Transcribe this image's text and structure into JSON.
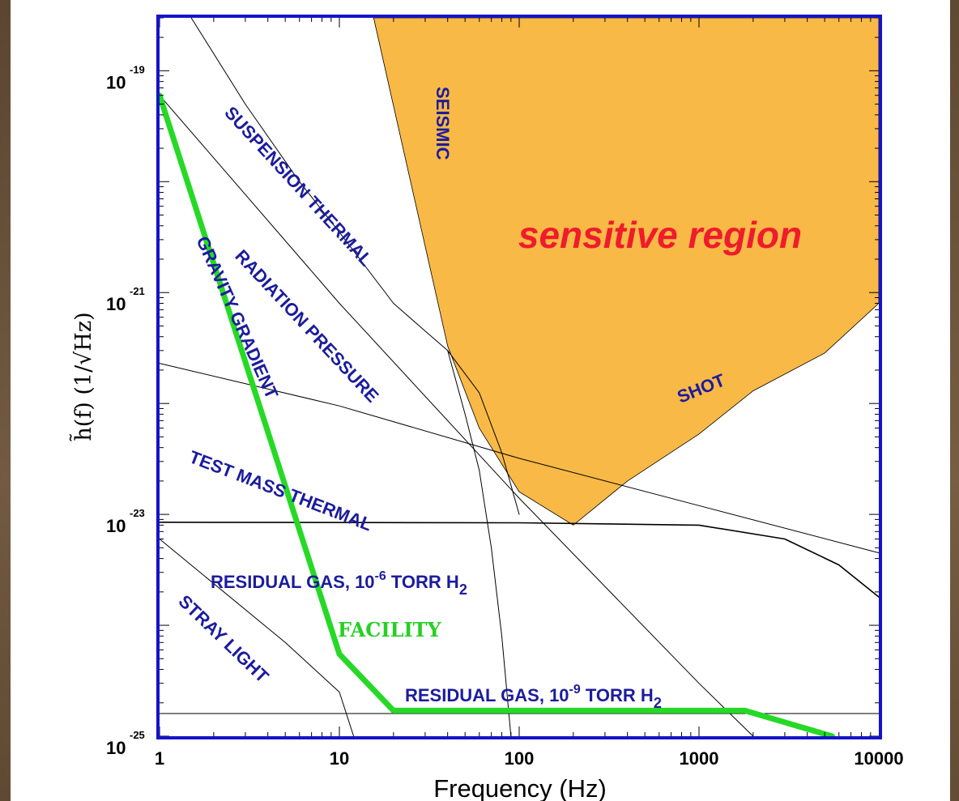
{
  "chart_data": {
    "type": "line",
    "x_scale": "log",
    "y_scale": "log",
    "xlim": [
      1,
      10000
    ],
    "ylim": [
      1e-25,
      3e-19
    ],
    "xlabel": "Frequency (Hz)",
    "ylabel": "h̃(f) (1/√Hz)",
    "x_ticks": [
      "1",
      "10",
      "100",
      "1000",
      "10000"
    ],
    "y_ticks": [
      {
        "value": 1e-19,
        "base": "10",
        "exp": "-19"
      },
      {
        "value": 1e-21,
        "base": "10",
        "exp": "-21"
      },
      {
        "value": 1e-23,
        "base": "10",
        "exp": "-23"
      },
      {
        "value": 1e-25,
        "base": "10",
        "exp": "-25"
      }
    ],
    "region_label": "sensitive region",
    "region_color": "#f8b947",
    "sensitive_region": {
      "x": [
        15.5,
        40,
        60,
        100,
        200,
        400,
        1000,
        2000,
        5000,
        10000,
        10000
      ],
      "y": [
        3e-19,
        3.3e-22,
        6e-23,
        1.6e-23,
        8e-24,
        2e-23,
        5.3e-23,
        1.3e-22,
        2.85e-22,
        8e-22,
        3e-19
      ]
    },
    "facility_color": "#27d927",
    "series": [
      {
        "name": "SUSPENSION THERMAL",
        "x": [
          1.5,
          3,
          6,
          10,
          20,
          30,
          40,
          60,
          80,
          100
        ],
        "y": [
          3e-19,
          5e-20,
          1e-20,
          3.5e-21,
          8e-22,
          4.5e-22,
          3e-22,
          1.25e-22,
          3.6e-23,
          1e-23
        ]
      },
      {
        "name": "SEISMIC",
        "x": [
          40,
          50,
          60,
          70,
          80,
          90
        ],
        "y": [
          3e-22,
          8e-23,
          2.5e-23,
          5e-24,
          8e-25,
          1e-25
        ]
      },
      {
        "name": "RADIATION PRESSURE",
        "x": [
          1,
          10,
          100,
          1000,
          2000
        ],
        "y": [
          6e-20,
          8e-22,
          1.4e-23,
          3e-25,
          1e-25
        ]
      },
      {
        "name": "TEST MASS THERMAL",
        "x": [
          1,
          10,
          100,
          1000,
          10000
        ],
        "y": [
          2.3e-22,
          9.5e-23,
          3.2e-23,
          1.2e-23,
          4.5e-24
        ]
      },
      {
        "name": "RESIDUAL GAS, 10-6 TORR H2",
        "x": [
          1,
          100,
          1000,
          3000,
          6000,
          10000
        ],
        "y": [
          8.5e-24,
          8.4e-24,
          8e-24,
          6e-24,
          3.5e-24,
          1.8e-24
        ]
      },
      {
        "name": "STRAY LIGHT",
        "x": [
          1,
          5,
          10,
          12
        ],
        "y": [
          6e-24,
          7e-25,
          2.5e-25,
          1e-25
        ]
      },
      {
        "name": "RESIDUAL GAS, 10-9 TORR H2",
        "x": [
          1,
          10000
        ],
        "y": [
          1.6e-25,
          1.6e-25
        ]
      },
      {
        "name": "FACILITY",
        "x": [
          1,
          10,
          20,
          1800,
          5500
        ],
        "y": [
          6e-20,
          5.5e-25,
          1.7e-25,
          1.7e-25,
          1e-25
        ]
      }
    ],
    "labels": {
      "suspension": "SUSPENSION THERMAL",
      "seismic": "SEISMIC",
      "radiation": "RADIATION PRESSURE",
      "gravity": "GRAVITY GRADIENT",
      "testmass": "TEST MASS THERMAL",
      "shot": "SHOT",
      "gas6_text": "RESIDUAL GAS, 10",
      "gas6_exp": "-6",
      "gas6_torr": " TORR H",
      "gas6_sub": "2",
      "gas9_text": "RESIDUAL GAS, 10",
      "gas9_exp": "-9",
      "gas9_torr": " TORR H",
      "gas9_sub": "2",
      "stray": "STRAY LIGHT",
      "facility": "FACILITY"
    }
  }
}
